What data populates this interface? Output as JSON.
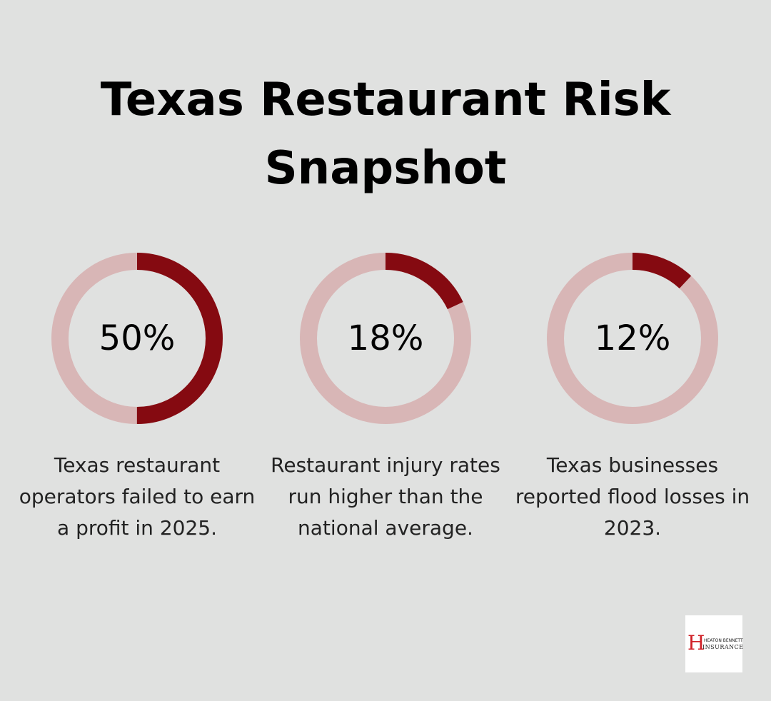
{
  "title": "Texas Restaurant Risk Snapshot",
  "colors": {
    "background": "#e0e1e0",
    "ring_track": "#d8b6b6",
    "ring_fill": "#850a11",
    "logo_accent": "#d02027"
  },
  "chart_data": [
    {
      "type": "pie",
      "value": 50,
      "label": "50%",
      "description": "Texas restaurant operators failed to earn a profit in 2025."
    },
    {
      "type": "pie",
      "value": 18,
      "label": "18%",
      "description": "Restaurant injury rates run higher than the national average."
    },
    {
      "type": "pie",
      "value": 12,
      "label": "12%",
      "description": "Texas businesses reported flood losses in 2023."
    }
  ],
  "logo": {
    "letter": "H",
    "line1": "HEATON BENNETT",
    "line2": "INSURANCE"
  }
}
